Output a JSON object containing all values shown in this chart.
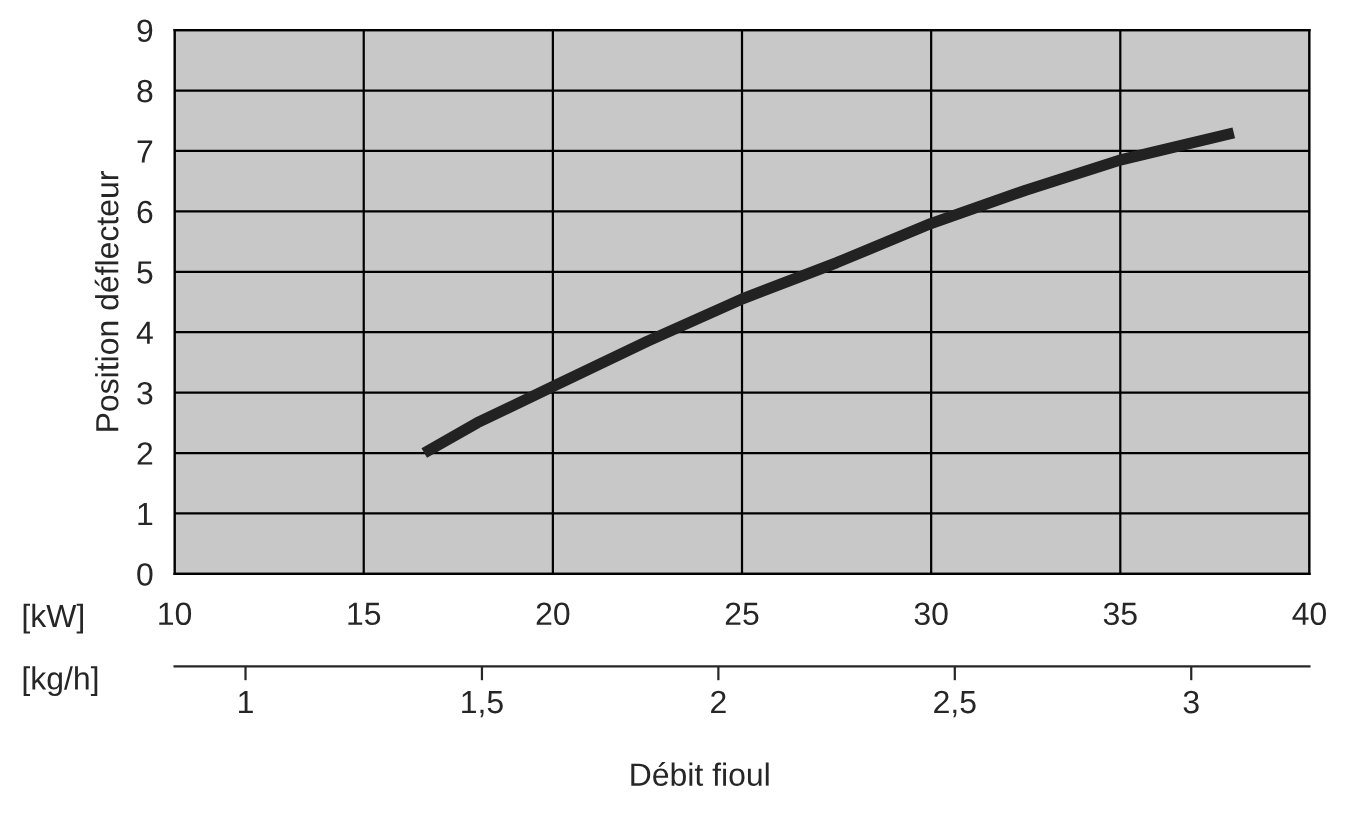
{
  "chart_data": {
    "type": "line",
    "xlabel": "[kW]",
    "x2label": "[kg/h]",
    "ylabel": "Position déflecteur",
    "annotations": [
      "Débit fioul"
    ],
    "x": [
      16.6,
      18,
      20,
      22.5,
      25,
      27.5,
      30,
      32.5,
      35,
      38
    ],
    "series": [
      {
        "color": "#222222",
        "values": [
          2.0,
          2.5,
          3.1,
          3.85,
          4.55,
          5.15,
          5.8,
          6.35,
          6.85,
          7.3
        ]
      }
    ],
    "xlim": [
      10,
      40
    ],
    "xticks": [
      10,
      15,
      20,
      25,
      30,
      35,
      40
    ],
    "x2lim": [
      0.85,
      3.25
    ],
    "x2ticks": [
      1,
      {
        "value": 1.5,
        "label": "1,5"
      },
      2,
      {
        "value": 2.5,
        "label": "2,5"
      },
      3
    ],
    "ylim": [
      0,
      9
    ],
    "yticks": [
      0,
      1,
      2,
      3,
      4,
      5,
      6,
      7,
      8,
      9
    ],
    "grid": true,
    "marker": "none",
    "line_style": "solid",
    "legend": false
  }
}
